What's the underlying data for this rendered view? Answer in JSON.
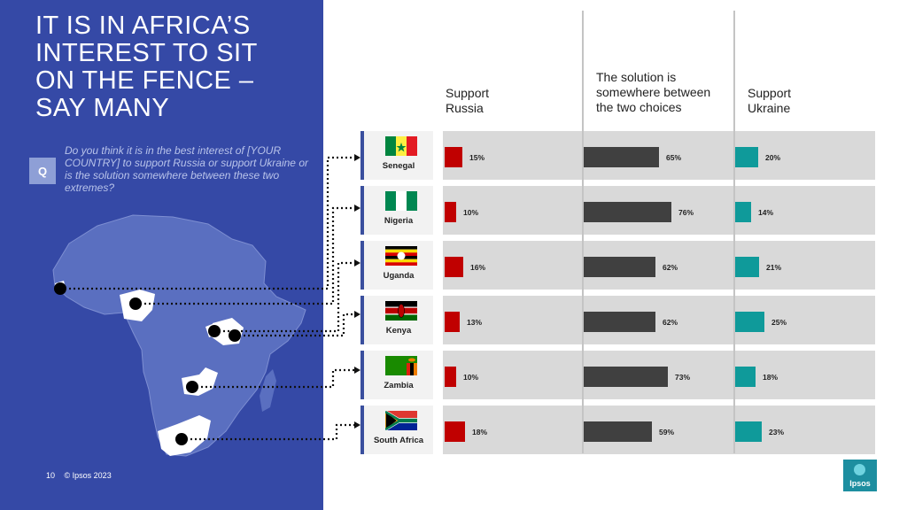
{
  "title": "IT IS IN AFRICA’S INTEREST TO SIT ON THE FENCE – SAY MANY",
  "question": {
    "badge": "Q",
    "text": "Do you think it is in the best interest of [YOUR COUNTRY] to support Russia or support Ukraine or is the solution somewhere between these two  extremes?"
  },
  "footer": {
    "page": "10",
    "copyright": "© Ipsos 2023"
  },
  "logo": {
    "text": "Ipsos"
  },
  "colors": {
    "panel": "#3549a6",
    "russia": "#c00000",
    "between": "#404040",
    "ukraine": "#0f9a9a"
  },
  "chart_data": {
    "type": "bar",
    "stacked": false,
    "categories": [
      "Senegal",
      "Nigeria",
      "Uganda",
      "Kenya",
      "Zambia",
      "South Africa"
    ],
    "series": [
      {
        "name": "Support Russia",
        "values": [
          15,
          10,
          16,
          13,
          10,
          18
        ]
      },
      {
        "name": "The solution is somewhere between the two choices",
        "values": [
          65,
          76,
          62,
          62,
          73,
          59
        ]
      },
      {
        "name": "Support Ukraine",
        "values": [
          20,
          14,
          21,
          25,
          18,
          23
        ]
      }
    ],
    "labels": {
      "russia": [
        "15%",
        "10%",
        "16%",
        "13%",
        "10%",
        "18%"
      ],
      "between": [
        "65%",
        "76%",
        "62%",
        "62%",
        "73%",
        "59%"
      ],
      "ukraine": [
        "20%",
        "14%",
        "21%",
        "25%",
        "18%",
        "23%"
      ]
    },
    "orientation": "horizontal",
    "unit": "%"
  },
  "headers": {
    "russia": [
      "Support",
      "Russia"
    ],
    "between": [
      "The solution is",
      "somewhere between",
      "the two choices"
    ],
    "ukraine": [
      "Support",
      "Ukraine"
    ]
  }
}
